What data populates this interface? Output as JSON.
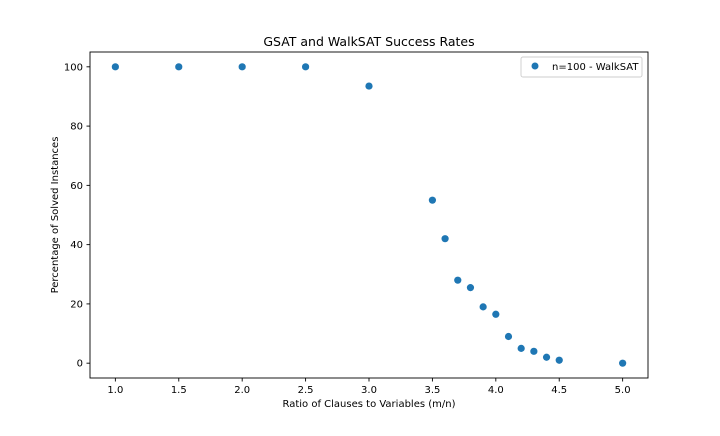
{
  "chart_data": {
    "type": "scatter",
    "title": "GSAT and WalkSAT Success Rates",
    "xlabel": "Ratio of Clauses to Variables (m/n)",
    "ylabel": "Percentage of Solved Instances",
    "xlim": [
      0.8,
      5.2
    ],
    "ylim": [
      -5,
      105
    ],
    "xticks": [
      1.0,
      1.5,
      2.0,
      2.5,
      3.0,
      3.5,
      4.0,
      4.5,
      5.0
    ],
    "xtick_labels": [
      "1.0",
      "1.5",
      "2.0",
      "2.5",
      "3.0",
      "3.5",
      "4.0",
      "4.5",
      "5.0"
    ],
    "yticks": [
      0,
      20,
      40,
      60,
      80,
      100
    ],
    "ytick_labels": [
      "0",
      "20",
      "40",
      "60",
      "80",
      "100"
    ],
    "grid": false,
    "legend_position": "top-right",
    "series": [
      {
        "name": "n=100 - WalkSAT",
        "color": "#1f77b4",
        "x": [
          1.0,
          1.5,
          2.0,
          2.5,
          3.0,
          3.5,
          3.6,
          3.7,
          3.8,
          3.9,
          4.0,
          4.1,
          4.2,
          4.3,
          4.4,
          4.5,
          5.0
        ],
        "y": [
          100,
          100,
          100,
          100,
          93.5,
          55,
          42,
          28,
          25.5,
          19,
          16.5,
          9,
          5,
          4,
          2,
          1,
          0
        ]
      }
    ]
  }
}
